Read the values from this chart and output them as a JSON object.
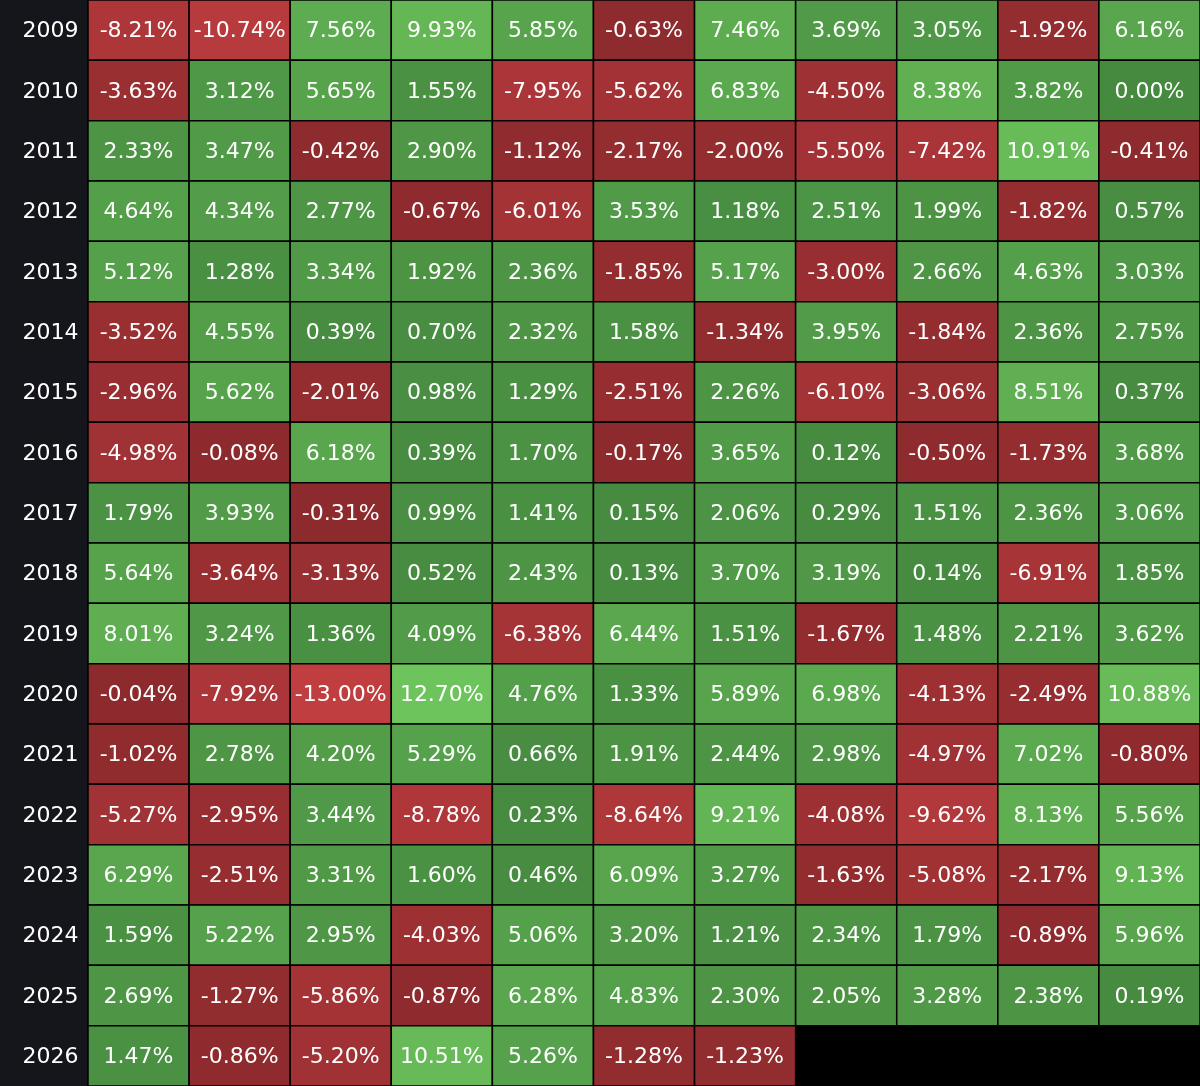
{
  "chart_data": {
    "type": "heatmap",
    "tick_labels": "y",
    "categories": [
      null,
      null,
      null,
      null,
      null,
      null,
      null,
      null,
      null,
      null,
      null
    ],
    "y_categories": [
      "2009",
      "2010",
      "2011",
      "2012",
      "2013",
      "2014",
      "2015",
      "2016",
      "2017",
      "2018",
      "2019",
      "2020",
      "2021",
      "2022",
      "2023",
      "2024",
      "2025",
      "2026"
    ],
    "cells": [
      [
        -8.21,
        -10.74,
        7.56,
        9.93,
        5.85,
        -0.63,
        7.46,
        3.69,
        3.05,
        -1.92,
        6.16
      ],
      [
        -3.63,
        3.12,
        5.65,
        1.55,
        -7.95,
        -5.62,
        6.83,
        -4.5,
        8.38,
        3.82,
        0.0
      ],
      [
        2.33,
        3.47,
        -0.42,
        2.9,
        -1.12,
        -2.17,
        -2.0,
        -5.5,
        -7.42,
        10.91,
        -0.41
      ],
      [
        4.64,
        4.34,
        2.77,
        -0.67,
        -6.01,
        3.53,
        1.18,
        2.51,
        1.99,
        -1.82,
        0.57
      ],
      [
        5.12,
        1.28,
        3.34,
        1.92,
        2.36,
        -1.85,
        5.17,
        -3.0,
        2.66,
        4.63,
        3.03
      ],
      [
        -3.52,
        4.55,
        0.39,
        0.7,
        2.32,
        1.58,
        -1.34,
        3.95,
        -1.84,
        2.36,
        2.75
      ],
      [
        -2.96,
        5.62,
        -2.01,
        0.98,
        1.29,
        -2.51,
        2.26,
        -6.1,
        -3.06,
        8.51,
        0.37
      ],
      [
        -4.98,
        -0.08,
        6.18,
        0.39,
        1.7,
        -0.17,
        3.65,
        0.12,
        -0.5,
        -1.73,
        3.68
      ],
      [
        1.79,
        3.93,
        -0.31,
        0.99,
        1.41,
        0.15,
        2.06,
        0.29,
        1.51,
        2.36,
        3.06
      ],
      [
        5.64,
        -3.64,
        -3.13,
        0.52,
        2.43,
        0.13,
        3.7,
        3.19,
        0.14,
        -6.91,
        1.85
      ],
      [
        8.01,
        3.24,
        1.36,
        4.09,
        -6.38,
        6.44,
        1.51,
        -1.67,
        1.48,
        2.21,
        3.62
      ],
      [
        -0.04,
        -7.92,
        -13.0,
        12.7,
        4.76,
        1.33,
        5.89,
        6.98,
        -4.13,
        -2.49,
        10.88
      ],
      [
        -1.02,
        2.78,
        4.2,
        5.29,
        0.66,
        1.91,
        2.44,
        2.98,
        -4.97,
        7.02,
        -0.8
      ],
      [
        -5.27,
        -2.95,
        3.44,
        -8.78,
        0.23,
        -8.64,
        9.21,
        -4.08,
        -9.62,
        8.13,
        5.56
      ],
      [
        6.29,
        -2.51,
        3.31,
        1.6,
        0.46,
        6.09,
        3.27,
        -1.63,
        -5.08,
        -2.17,
        9.13
      ],
      [
        1.59,
        5.22,
        2.95,
        -4.03,
        5.06,
        3.2,
        1.21,
        2.34,
        1.79,
        -0.89,
        5.96
      ],
      [
        2.69,
        -1.27,
        -5.86,
        -0.87,
        6.28,
        4.83,
        2.3,
        2.05,
        3.28,
        2.38,
        0.19
      ],
      [
        1.47,
        -0.86,
        -5.2,
        10.51,
        5.26,
        -1.28,
        -1.23,
        null,
        null,
        null,
        null
      ]
    ],
    "cell_labels": [
      [
        "-8.21%",
        "-10.74%",
        "7.56%",
        "9.93%",
        "5.85%",
        "-0.63%",
        "7.46%",
        "3.69%",
        "3.05%",
        "-1.92%",
        "6.16%"
      ],
      [
        "-3.63%",
        "3.12%",
        "5.65%",
        "1.55%",
        "-7.95%",
        "-5.62%",
        "6.83%",
        "-4.50%",
        "8.38%",
        "3.82%",
        "0.00%"
      ],
      [
        "2.33%",
        "3.47%",
        "-0.42%",
        "2.90%",
        "-1.12%",
        "-2.17%",
        "-2.00%",
        "-5.50%",
        "-7.42%",
        "10.91%",
        "-0.41%"
      ],
      [
        "4.64%",
        "4.34%",
        "2.77%",
        "-0.67%",
        "-6.01%",
        "3.53%",
        "1.18%",
        "2.51%",
        "1.99%",
        "-1.82%",
        "0.57%"
      ],
      [
        "5.12%",
        "1.28%",
        "3.34%",
        "1.92%",
        "2.36%",
        "-1.85%",
        "5.17%",
        "-3.00%",
        "2.66%",
        "4.63%",
        "3.03%"
      ],
      [
        "-3.52%",
        "4.55%",
        "0.39%",
        "0.70%",
        "2.32%",
        "1.58%",
        "-1.34%",
        "3.95%",
        "-1.84%",
        "2.36%",
        "2.75%"
      ],
      [
        "-2.96%",
        "5.62%",
        "-2.01%",
        "0.98%",
        "1.29%",
        "-2.51%",
        "2.26%",
        "-6.10%",
        "-3.06%",
        "8.51%",
        "0.37%"
      ],
      [
        "-4.98%",
        "-0.08%",
        "6.18%",
        "0.39%",
        "1.70%",
        "-0.17%",
        "3.65%",
        "0.12%",
        "-0.50%",
        "-1.73%",
        "3.68%"
      ],
      [
        "1.79%",
        "3.93%",
        "-0.31%",
        "0.99%",
        "1.41%",
        "0.15%",
        "2.06%",
        "0.29%",
        "1.51%",
        "2.36%",
        "3.06%"
      ],
      [
        "5.64%",
        "-3.64%",
        "-3.13%",
        "0.52%",
        "2.43%",
        "0.13%",
        "3.70%",
        "3.19%",
        "0.14%",
        "-6.91%",
        "1.85%"
      ],
      [
        "8.01%",
        "3.24%",
        "1.36%",
        "4.09%",
        "-6.38%",
        "6.44%",
        "1.51%",
        "-1.67%",
        "1.48%",
        "2.21%",
        "3.62%"
      ],
      [
        "-0.04%",
        "-7.92%",
        "-13.00%",
        "12.70%",
        "4.76%",
        "1.33%",
        "5.89%",
        "6.98%",
        "-4.13%",
        "-2.49%",
        "10.88%"
      ],
      [
        "-1.02%",
        "2.78%",
        "4.20%",
        "5.29%",
        "0.66%",
        "1.91%",
        "2.44%",
        "2.98%",
        "-4.97%",
        "7.02%",
        "-0.80%"
      ],
      [
        "-5.27%",
        "-2.95%",
        "3.44%",
        "-8.78%",
        "0.23%",
        "-8.64%",
        "9.21%",
        "-4.08%",
        "-9.62%",
        "8.13%",
        "5.56%"
      ],
      [
        "6.29%",
        "-2.51%",
        "3.31%",
        "1.60%",
        "0.46%",
        "6.09%",
        "3.27%",
        "-1.63%",
        "-5.08%",
        "-2.17%",
        "9.13%"
      ],
      [
        "1.59%",
        "5.22%",
        "2.95%",
        "-4.03%",
        "5.06%",
        "3.20%",
        "1.21%",
        "2.34%",
        "1.79%",
        "-0.89%",
        "5.96%"
      ],
      [
        "2.69%",
        "-1.27%",
        "-5.86%",
        "-0.87%",
        "6.28%",
        "4.83%",
        "2.30%",
        "2.05%",
        "3.28%",
        "2.38%",
        "0.19%"
      ],
      [
        "1.47%",
        "-0.86%",
        "-5.20%",
        "10.51%",
        "5.26%",
        "-1.28%",
        "-1.23%",
        null,
        null,
        null,
        null
      ]
    ]
  }
}
